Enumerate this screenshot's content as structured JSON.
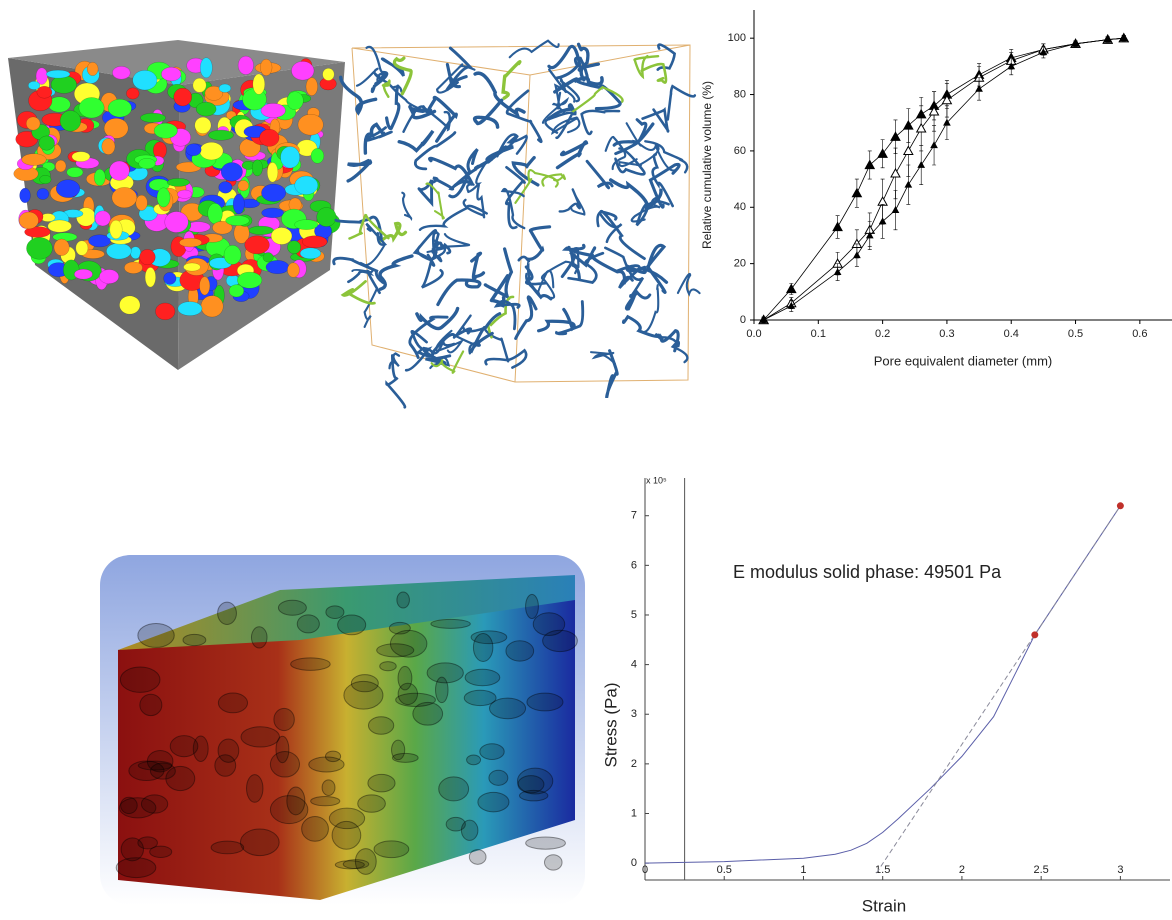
{
  "chart_data": [
    {
      "type": "line",
      "xlabel": "Pore equivalent diameter (mm)",
      "ylabel": "Relative cumulative volume (%)",
      "x": [
        0.015,
        0.058,
        0.13,
        0.16,
        0.18,
        0.2,
        0.22,
        0.24,
        0.26,
        0.28,
        0.3,
        0.35,
        0.4,
        0.45,
        0.5,
        0.55,
        0.575
      ],
      "xlim": [
        0,
        0.65
      ],
      "xticks": [
        {
          "value": 0,
          "label": "0.0"
        },
        0.1,
        0.2,
        0.3,
        0.4,
        0.5,
        0.6
      ],
      "ylim": [
        0,
        110
      ],
      "yticks": [
        0,
        20,
        40,
        60,
        80,
        100
      ],
      "series": [
        {
          "marker": "filled",
          "color": "#000000",
          "values": [
            0,
            11,
            33,
            45,
            55,
            59,
            65,
            69,
            73,
            76,
            80,
            87,
            93,
            96,
            98,
            99.5,
            100
          ],
          "errors": [
            1,
            2,
            4,
            5,
            5,
            5,
            6,
            6,
            6,
            5,
            5,
            4,
            3,
            2,
            1,
            1,
            1
          ]
        },
        {
          "marker": "open",
          "color": "#000000",
          "values": [
            0,
            6,
            20,
            27,
            32,
            42,
            52,
            60,
            68,
            74,
            78,
            86,
            92,
            96,
            98,
            99.5,
            100
          ],
          "errors": [
            1,
            2,
            4,
            5,
            6,
            8,
            9,
            9,
            8,
            7,
            6,
            4,
            3,
            2,
            1,
            1,
            1
          ]
        },
        {
          "marker": "small",
          "color": "#000000",
          "values": [
            0,
            5,
            17,
            23,
            30,
            35,
            39,
            48,
            55,
            62,
            70,
            82,
            90,
            95,
            98,
            99.5,
            100
          ],
          "errors": [
            1,
            2,
            3,
            4,
            5,
            6,
            7,
            7,
            7,
            7,
            6,
            4,
            3,
            2,
            1,
            1,
            1
          ]
        }
      ]
    },
    {
      "type": "line",
      "annotation": "E modulus solid phase: 49501 Pa",
      "multiplier": "x 10⁵",
      "xlabel": "Strain",
      "ylabel": "Stress (Pa)",
      "xlim": [
        0,
        3.25
      ],
      "xticks": [
        0,
        0.5,
        1,
        1.5,
        2,
        2.5,
        3
      ],
      "ylim": [
        -0.34,
        7.76
      ],
      "yticks": [
        0,
        1,
        2,
        3,
        4,
        5,
        6,
        7
      ],
      "vline": 0.25,
      "series": [
        {
          "style": "solid",
          "color": "#5a5ea8",
          "x": [
            0,
            0.5,
            1,
            1.2,
            1.3,
            1.4,
            1.5,
            1.6,
            1.8,
            2,
            2.2,
            2.46,
            2.7,
            3
          ],
          "values": [
            0,
            0.03,
            0.1,
            0.18,
            0.26,
            0.4,
            0.62,
            0.9,
            1.5,
            2.15,
            2.95,
            4.6,
            5.76,
            7.2
          ]
        },
        {
          "style": "dashed",
          "color": "#8a8a9a",
          "x": [
            1.46,
            3
          ],
          "values": [
            -0.2,
            7.2
          ]
        },
        {
          "style": "points",
          "color": "#c0302a",
          "x": [
            2.46,
            3
          ],
          "values": [
            4.6,
            7.2
          ]
        }
      ]
    }
  ]
}
